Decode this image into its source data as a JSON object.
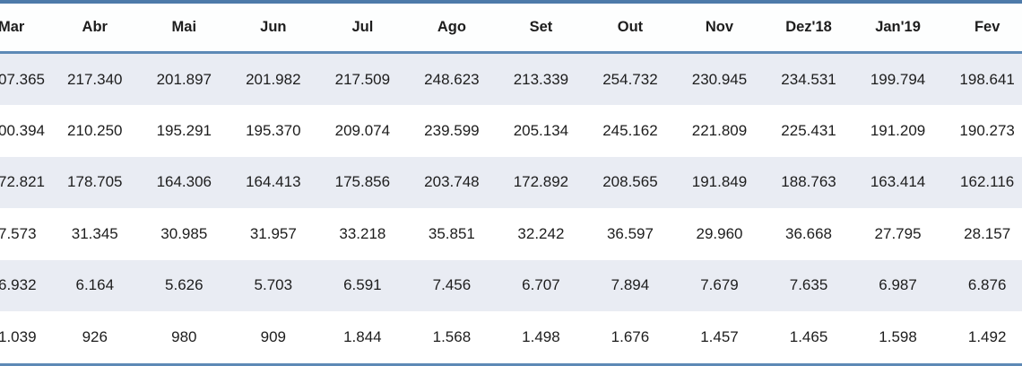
{
  "chart_data": {
    "type": "table",
    "title": "",
    "columns": [
      "Mar",
      "Abr",
      "Mai",
      "Jun",
      "Jul",
      "Ago",
      "Set",
      "Out",
      "Nov",
      "Dez'18",
      "Jan'19",
      "Fev"
    ],
    "rows": [
      [
        "07.365",
        "217.340",
        "201.897",
        "201.982",
        "217.509",
        "248.623",
        "213.339",
        "254.732",
        "230.945",
        "234.531",
        "199.794",
        "198.641"
      ],
      [
        "00.394",
        "210.250",
        "195.291",
        "195.370",
        "209.074",
        "239.599",
        "205.134",
        "245.162",
        "221.809",
        "225.431",
        "191.209",
        "190.273"
      ],
      [
        "72.821",
        "178.705",
        "164.306",
        "164.413",
        "175.856",
        "203.748",
        "172.892",
        "208.565",
        "191.849",
        "188.763",
        "163.414",
        "162.116"
      ],
      [
        "7.573",
        "31.345",
        "30.985",
        "31.957",
        "33.218",
        "35.851",
        "32.242",
        "36.597",
        "29.960",
        "36.668",
        "27.795",
        "28.157"
      ],
      [
        "6.932",
        "6.164",
        "5.626",
        "5.703",
        "6.591",
        "7.456",
        "6.707",
        "7.894",
        "7.679",
        "7.635",
        "6.987",
        "6.876"
      ],
      [
        "1.039",
        "926",
        "980",
        "909",
        "1.844",
        "1.568",
        "1.498",
        "1.676",
        "1.457",
        "1.465",
        "1.598",
        "1.492"
      ]
    ],
    "layout_hints": {
      "first_column_clipped_at_left_edge": true,
      "striped_row_indexes": [
        0,
        2,
        4
      ],
      "number_format": "pt-BR thousands separator (.)"
    }
  },
  "colors": {
    "top_rule": "#4d7aa9",
    "header_underline": "#5d89b6",
    "bottom_rule": "#5d89b6",
    "row_stripe": "#e9ecf3",
    "text": "#1d1d1d",
    "background": "#ffffff"
  }
}
